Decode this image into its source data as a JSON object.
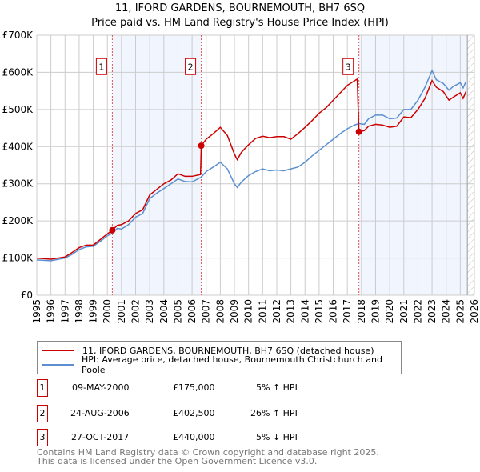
{
  "chart_data": {
    "type": "line",
    "title": "11, IFORD GARDENS, BOURNEMOUTH, BH7 6SQ",
    "subtitle": "Price paid vs. HM Land Registry's House Price Index (HPI)",
    "xlim": [
      1995,
      2026
    ],
    "ylim": [
      0,
      700000
    ],
    "x_ticks": [
      "1995",
      "1996",
      "1997",
      "1998",
      "1999",
      "2000",
      "2001",
      "2002",
      "2003",
      "2004",
      "2005",
      "2006",
      "2007",
      "2008",
      "2009",
      "2010",
      "2011",
      "2012",
      "2013",
      "2014",
      "2015",
      "2016",
      "2017",
      "2018",
      "2019",
      "2020",
      "2021",
      "2022",
      "2023",
      "2024",
      "2025",
      "2026"
    ],
    "y_ticks": [
      {
        "v": 0,
        "label": "£0"
      },
      {
        "v": 100000,
        "label": "£100K"
      },
      {
        "v": 200000,
        "label": "£200K"
      },
      {
        "v": 300000,
        "label": "£300K"
      },
      {
        "v": 400000,
        "label": "£400K"
      },
      {
        "v": 500000,
        "label": "£500K"
      },
      {
        "v": 600000,
        "label": "£600K"
      },
      {
        "v": 700000,
        "label": "£700K"
      }
    ],
    "grid": true,
    "legend_position": "below",
    "series": [
      {
        "name": "11, IFORD GARDENS, BOURNEMOUTH, BH7 6SQ (detached house)",
        "color": "#cc0000",
        "x": [
          1995,
          1996,
          1997,
          1997.5,
          1998,
          1998.5,
          1999,
          1999.5,
          2000,
          2000.35,
          2000.7,
          2001,
          2001.5,
          2002,
          2002.5,
          2003,
          2003.5,
          2004,
          2004.5,
          2005,
          2005.5,
          2006,
          2006.6,
          2006.65,
          2007,
          2007.5,
          2008,
          2008.5,
          2009,
          2009.2,
          2009.5,
          2010,
          2010.5,
          2011,
          2011.5,
          2012,
          2012.5,
          2013,
          2013.5,
          2014,
          2014.5,
          2015,
          2015.5,
          2016,
          2016.5,
          2017,
          2017.7,
          2017.82,
          2018.2,
          2018.5,
          2019,
          2019.5,
          2020,
          2020.5,
          2021,
          2021.5,
          2022,
          2022.5,
          2023,
          2023.3,
          2023.8,
          2024.2,
          2024.5,
          2025,
          2025.2,
          2025.4
        ],
        "y": [
          100,
          97,
          103,
          115,
          128,
          135,
          135,
          150,
          165,
          175,
          188,
          190,
          200,
          220,
          230,
          270,
          285,
          300,
          310,
          327,
          320,
          320,
          325,
          402.5,
          420,
          435,
          452,
          430,
          380,
          365,
          385,
          405,
          422,
          428,
          424,
          427,
          427,
          420,
          435,
          452,
          470,
          490,
          505,
          525,
          545,
          565,
          582,
          440,
          443,
          455,
          460,
          458,
          452,
          455,
          480,
          478,
          500,
          530,
          578,
          560,
          548,
          525,
          533,
          545,
          530,
          548
        ]
      },
      {
        "name": "HPI: Average price, detached house, Bournemouth Christchurch and Poole",
        "color": "#5b8fd0",
        "x": [
          1995,
          1996,
          1997,
          1997.5,
          1998,
          1998.5,
          1999,
          1999.5,
          2000,
          2000.35,
          2000.7,
          2001,
          2001.5,
          2002,
          2002.5,
          2003,
          2003.5,
          2004,
          2004.5,
          2005,
          2005.5,
          2006,
          2006.65,
          2007,
          2007.5,
          2008,
          2008.5,
          2009,
          2009.2,
          2009.5,
          2010,
          2010.5,
          2011,
          2011.5,
          2012,
          2012.5,
          2013,
          2013.5,
          2014,
          2014.5,
          2015,
          2015.5,
          2016,
          2016.5,
          2017,
          2017.5,
          2017.82,
          2018.2,
          2018.5,
          2019,
          2019.5,
          2020,
          2020.5,
          2021,
          2021.5,
          2022,
          2022.5,
          2023,
          2023.3,
          2023.8,
          2024.2,
          2024.5,
          2025,
          2025.2,
          2025.4
        ],
        "y": [
          95,
          93,
          100,
          110,
          123,
          130,
          132,
          145,
          160,
          167,
          180,
          178,
          190,
          210,
          220,
          260,
          275,
          287,
          300,
          313,
          306,
          305,
          318,
          333,
          345,
          358,
          340,
          300,
          290,
          305,
          322,
          333,
          340,
          335,
          337,
          335,
          340,
          345,
          358,
          375,
          390,
          405,
          420,
          435,
          448,
          458,
          462,
          460,
          475,
          485,
          485,
          475,
          477,
          500,
          500,
          525,
          560,
          605,
          580,
          570,
          552,
          562,
          572,
          558,
          575
        ]
      }
    ],
    "y_units": "thousands GBP",
    "sales": [
      {
        "label": "1",
        "x": 2000.35,
        "y": 175
      },
      {
        "label": "2",
        "x": 2006.65,
        "y": 402.5
      },
      {
        "label": "3",
        "x": 2017.82,
        "y": 440
      }
    ],
    "shaded_ranges": [
      [
        2000.35,
        2006.65
      ],
      [
        2017.82,
        2025.5
      ]
    ],
    "hatched_from": 2025.5
  },
  "table": [
    {
      "num": "1",
      "date": "09-MAY-2000",
      "price": "£175,000",
      "hpi": "5% ↑ HPI"
    },
    {
      "num": "2",
      "date": "24-AUG-2006",
      "price": "£402,500",
      "hpi": "26% ↑ HPI"
    },
    {
      "num": "3",
      "date": "27-OCT-2017",
      "price": "£440,000",
      "hpi": "5% ↓ HPI"
    }
  ],
  "footer": {
    "line1": "Contains HM Land Registry data © Crown copyright and database right 2025.",
    "line2": "This data is licensed under the Open Government Licence v3.0."
  }
}
